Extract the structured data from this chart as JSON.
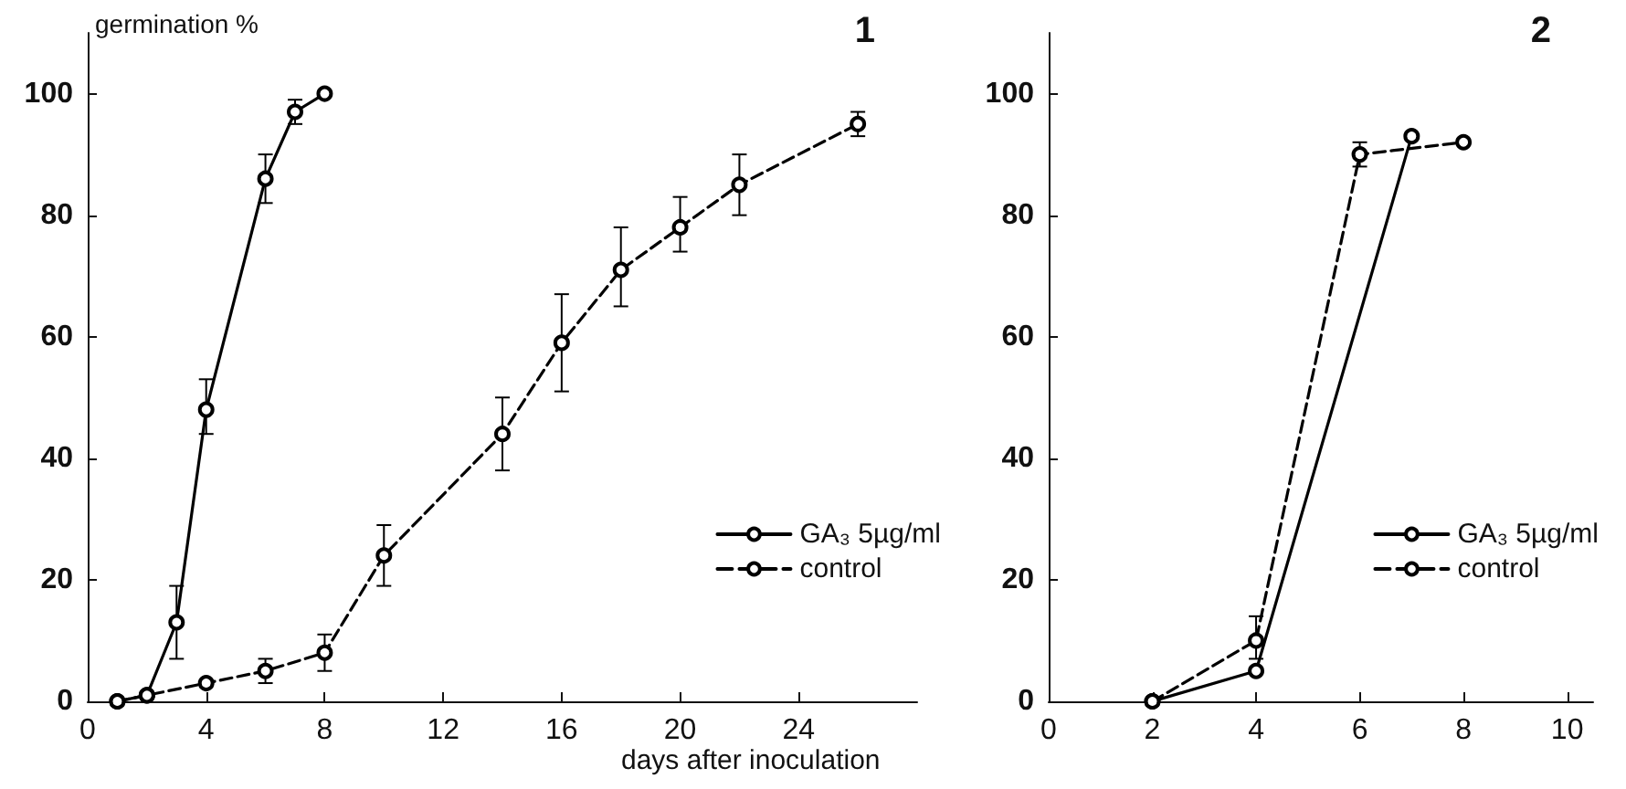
{
  "chart_data": [
    {
      "type": "line",
      "title": "1",
      "ylabel": "germination %",
      "xlabel": "days after inoculation",
      "xlim": [
        0,
        28
      ],
      "xticks": [
        0,
        4,
        8,
        12,
        16,
        20,
        24
      ],
      "ylim": [
        0,
        110
      ],
      "yticks": [
        0,
        20,
        40,
        60,
        80,
        100
      ],
      "grid": false,
      "legend": "bottom right",
      "marker": "circle",
      "series": [
        {
          "name": "GA₃ 5µg/ml",
          "color": "#000000",
          "line_style": "solid",
          "x": [
            1,
            2,
            3,
            4,
            6,
            7,
            8
          ],
          "values": [
            0,
            1,
            13,
            48,
            86,
            97,
            100
          ],
          "errors": [
            null,
            null,
            [
              7,
              19
            ],
            [
              44,
              53
            ],
            [
              82,
              90
            ],
            [
              95,
              99
            ],
            null
          ]
        },
        {
          "name": "control",
          "color": "#000000",
          "line_style": "dashed",
          "x": [
            1,
            2,
            4,
            6,
            8,
            10,
            14,
            16,
            18,
            20,
            22,
            26
          ],
          "values": [
            0,
            1,
            3,
            5,
            8,
            24,
            44,
            59,
            71,
            78,
            85,
            95
          ],
          "errors": [
            null,
            null,
            null,
            [
              3,
              7
            ],
            [
              5,
              11
            ],
            [
              19,
              29
            ],
            [
              38,
              50
            ],
            [
              51,
              67
            ],
            [
              65,
              78
            ],
            [
              74,
              83
            ],
            [
              80,
              90
            ],
            [
              93,
              97
            ]
          ]
        }
      ]
    },
    {
      "type": "line",
      "title": "2",
      "xlim": [
        0,
        10.5
      ],
      "xticks": [
        0,
        2,
        4,
        6,
        8,
        10
      ],
      "ylim": [
        0,
        110
      ],
      "yticks": [
        0,
        20,
        40,
        60,
        80,
        100
      ],
      "grid": false,
      "legend": "bottom right",
      "marker": "circle",
      "series": [
        {
          "name": "GA₃ 5µg/ml",
          "color": "#000000",
          "line_style": "solid",
          "x": [
            2,
            4,
            7
          ],
          "values": [
            0,
            5,
            93
          ]
        },
        {
          "name": "control",
          "color": "#000000",
          "line_style": "dashed",
          "x": [
            2,
            4,
            6,
            8
          ],
          "values": [
            0,
            10,
            90,
            92
          ],
          "errors": [
            null,
            [
              7,
              14
            ],
            [
              88,
              92
            ],
            null
          ]
        }
      ]
    }
  ]
}
